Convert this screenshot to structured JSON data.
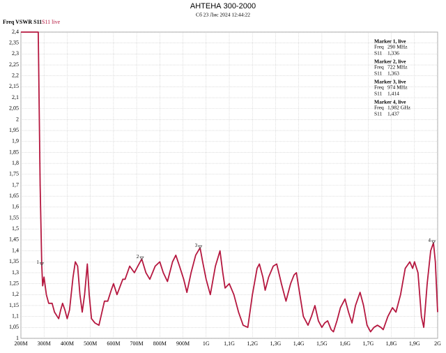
{
  "chart_data": {
    "type": "line",
    "title": "АНТЕНА 300-2000",
    "subtitle": "Сб 23 Лис 2024 12:44:22",
    "axis_title": "Freq VSWR S11",
    "series": [
      {
        "name": "S11 live",
        "color": "#b5173f",
        "x": [
          200,
          275,
          283,
          290,
          294,
          300,
          310,
          320,
          335,
          345,
          363,
          372,
          380,
          390,
          400,
          410,
          425,
          435,
          445,
          455,
          465,
          475,
          487,
          495,
          505,
          520,
          537,
          550,
          561,
          575,
          590,
          600,
          615,
          640,
          650,
          670,
          690,
          705,
          722,
          740,
          757,
          780,
          800,
          815,
          833,
          855,
          869,
          885,
          903,
          917,
          935,
          955,
          974,
          985,
          1000,
          1018,
          1040,
          1060,
          1072,
          1082,
          1100,
          1120,
          1140,
          1160,
          1180,
          1200,
          1220,
          1230,
          1245,
          1255,
          1270,
          1290,
          1305,
          1325,
          1345,
          1365,
          1380,
          1390,
          1405,
          1420,
          1440,
          1455,
          1470,
          1485,
          1500,
          1512,
          1525,
          1540,
          1550,
          1565,
          1580,
          1600,
          1615,
          1630,
          1645,
          1665,
          1680,
          1695,
          1710,
          1725,
          1740,
          1755,
          1765,
          1785,
          1805,
          1820,
          1840,
          1860,
          1880,
          1892,
          1900,
          1915,
          1930,
          1940,
          1955,
          1970,
          1982,
          1990,
          2000
        ],
        "values": [
          2.4,
          2.4,
          1.7,
          1.336,
          1.24,
          1.28,
          1.2,
          1.16,
          1.16,
          1.12,
          1.09,
          1.13,
          1.16,
          1.13,
          1.09,
          1.13,
          1.28,
          1.35,
          1.33,
          1.2,
          1.12,
          1.2,
          1.34,
          1.2,
          1.09,
          1.07,
          1.06,
          1.12,
          1.17,
          1.17,
          1.22,
          1.25,
          1.2,
          1.27,
          1.27,
          1.33,
          1.3,
          1.33,
          1.363,
          1.3,
          1.27,
          1.33,
          1.35,
          1.3,
          1.26,
          1.35,
          1.38,
          1.33,
          1.27,
          1.21,
          1.3,
          1.38,
          1.414,
          1.35,
          1.27,
          1.2,
          1.33,
          1.4,
          1.3,
          1.23,
          1.25,
          1.2,
          1.12,
          1.06,
          1.05,
          1.2,
          1.32,
          1.34,
          1.28,
          1.22,
          1.28,
          1.33,
          1.34,
          1.25,
          1.17,
          1.25,
          1.29,
          1.3,
          1.2,
          1.1,
          1.06,
          1.1,
          1.15,
          1.08,
          1.05,
          1.07,
          1.08,
          1.04,
          1.03,
          1.08,
          1.14,
          1.18,
          1.12,
          1.07,
          1.15,
          1.21,
          1.15,
          1.06,
          1.03,
          1.05,
          1.06,
          1.05,
          1.04,
          1.1,
          1.14,
          1.12,
          1.2,
          1.32,
          1.35,
          1.32,
          1.35,
          1.3,
          1.1,
          1.05,
          1.25,
          1.4,
          1.437,
          1.35,
          1.12
        ]
      }
    ],
    "markers": [
      {
        "label": "1",
        "x": 290,
        "y": 1.336,
        "title": "Marker 1, live",
        "freq_label": "Freq",
        "freq": "290 MHz",
        "s11_label": "S11",
        "s11": "1,336"
      },
      {
        "label": "2",
        "x": 722,
        "y": 1.363,
        "title": "Marker 2, live",
        "freq_label": "Freq",
        "freq": "722 MHz",
        "s11_label": "S11",
        "s11": "1,363"
      },
      {
        "label": "3",
        "x": 974,
        "y": 1.414,
        "title": "Marker 3, live",
        "freq_label": "Freq",
        "freq": "974 MHz",
        "s11_label": "S11",
        "s11": "1,414"
      },
      {
        "label": "4",
        "x": 1982,
        "y": 1.437,
        "title": "Marker 4, live",
        "freq_label": "Freq",
        "freq": "1,982 GHz",
        "s11_label": "S11",
        "s11": "1,437"
      }
    ],
    "xlim": [
      200,
      2000
    ],
    "xticks": [
      {
        "value": 200,
        "label": "200M"
      },
      {
        "value": 300,
        "label": "300M"
      },
      {
        "value": 400,
        "label": "400M"
      },
      {
        "value": 500,
        "label": "500M"
      },
      {
        "value": 600,
        "label": "600M"
      },
      {
        "value": 700,
        "label": "700M"
      },
      {
        "value": 800,
        "label": "800M"
      },
      {
        "value": 900,
        "label": "900M"
      },
      {
        "value": 1000,
        "label": "1G"
      },
      {
        "value": 1100,
        "label": "1,1G"
      },
      {
        "value": 1200,
        "label": "1,2G"
      },
      {
        "value": 1300,
        "label": "1,3G"
      },
      {
        "value": 1400,
        "label": "1,4G"
      },
      {
        "value": 1500,
        "label": "1,5G"
      },
      {
        "value": 1600,
        "label": "1,6G"
      },
      {
        "value": 1700,
        "label": "1,7G"
      },
      {
        "value": 1800,
        "label": "1,8G"
      },
      {
        "value": 1900,
        "label": "1,9G"
      },
      {
        "value": 2000,
        "label": "2G"
      }
    ],
    "ylim": [
      1,
      2.4
    ],
    "yticks": [
      1,
      {
        "value": 1.05,
        "label": "1,05"
      },
      {
        "value": 1.1,
        "label": "1,1"
      },
      {
        "value": 1.15,
        "label": "1,15"
      },
      {
        "value": 1.2,
        "label": "1,2"
      },
      {
        "value": 1.25,
        "label": "1,25"
      },
      {
        "value": 1.3,
        "label": "1,3"
      },
      {
        "value": 1.35,
        "label": "1,35"
      },
      {
        "value": 1.4,
        "label": "1,4"
      },
      {
        "value": 1.45,
        "label": "1,45"
      },
      {
        "value": 1.5,
        "label": "1,5"
      },
      {
        "value": 1.55,
        "label": "1,55"
      },
      {
        "value": 1.6,
        "label": "1,6"
      },
      {
        "value": 1.65,
        "label": "1,65"
      },
      {
        "value": 1.7,
        "label": "1,7"
      },
      {
        "value": 1.75,
        "label": "1,75"
      },
      {
        "value": 1.8,
        "label": "1,8"
      },
      {
        "value": 1.85,
        "label": "1,85"
      },
      {
        "value": 1.9,
        "label": "1,9"
      },
      {
        "value": 1.95,
        "label": "1,95"
      },
      2,
      {
        "value": 2.05,
        "label": "2,05"
      },
      {
        "value": 2.1,
        "label": "2,1"
      },
      {
        "value": 2.15,
        "label": "2,15"
      },
      {
        "value": 2.2,
        "label": "2,2"
      },
      {
        "value": 2.25,
        "label": "2,25"
      },
      {
        "value": 2.3,
        "label": "2,3"
      },
      {
        "value": 2.35,
        "label": "2,35"
      },
      {
        "value": 2.4,
        "label": "2,4"
      }
    ],
    "grid": true
  }
}
